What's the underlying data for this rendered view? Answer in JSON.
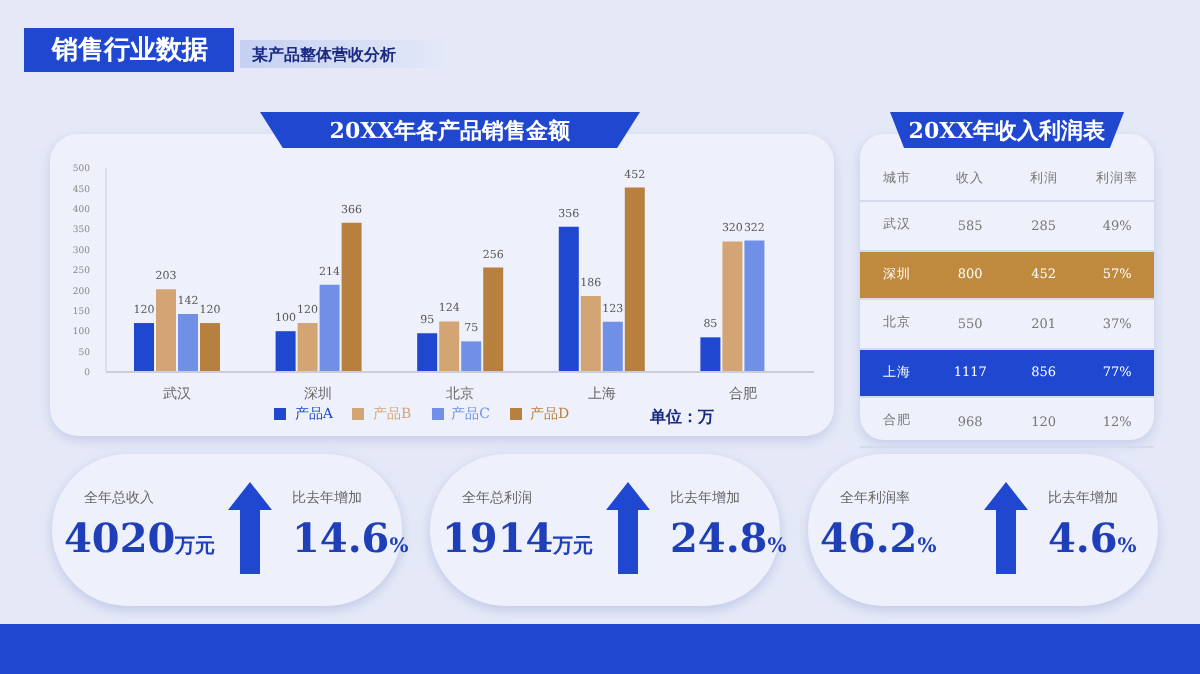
{
  "chart_data": [
    {
      "type": "other",
      "title": "销售行业数据",
      "subtitle": "某产品整体营收分析"
    },
    {
      "type": "bar",
      "title": "20XX年各产品销售金额",
      "categories": [
        "武汉",
        "深圳",
        "北京",
        "上海",
        "合肥"
      ],
      "series": [
        {
          "name": "产品A",
          "color": "#1f47d0",
          "values": [
            120,
            100,
            95,
            356,
            85
          ]
        },
        {
          "name": "产品B",
          "color": "#d4a574",
          "values": [
            203,
            120,
            124,
            186,
            320
          ]
        },
        {
          "name": "产品C",
          "color": "#7090e8",
          "values": [
            142,
            214,
            75,
            123,
            322
          ]
        },
        {
          "name": "产品D",
          "color": "#b8803e",
          "values": [
            120,
            366,
            256,
            452,
            null
          ]
        }
      ],
      "ylim": [
        0,
        500
      ],
      "yticks": [
        0,
        50,
        100,
        150,
        200,
        250,
        300,
        350,
        400,
        450,
        500
      ],
      "data_labels": true,
      "legend": "bottom",
      "grid": false,
      "annotations": [
        "单位：万"
      ]
    },
    {
      "type": "other",
      "title": "20XX年收入利润表",
      "categories": [
        "城市",
        "收入",
        "利润",
        "利润率"
      ],
      "y_categories": [
        "武汉",
        "深圳",
        "北京",
        "上海",
        "合肥"
      ],
      "cell_labels": [
        [
          "585",
          "285",
          "49%"
        ],
        [
          "800",
          "452",
          "57%"
        ],
        [
          "550",
          "201",
          "37%"
        ],
        [
          "1117",
          "856",
          "77%"
        ],
        [
          "968",
          "120",
          "12%"
        ]
      ],
      "colors": [
        null,
        "#c08a3e",
        null,
        "#1f47d0",
        null
      ]
    },
    {
      "type": "other",
      "annotations": [
        "全年总收入",
        "4020",
        "万元",
        "比去年增加",
        "14.6",
        "%",
        "全年总利润",
        "1914",
        "万元",
        "比去年增加",
        "24.8",
        "%",
        "全年利润率",
        "46.2",
        "%",
        "比去年增加",
        "4.6",
        "%"
      ]
    }
  ]
}
